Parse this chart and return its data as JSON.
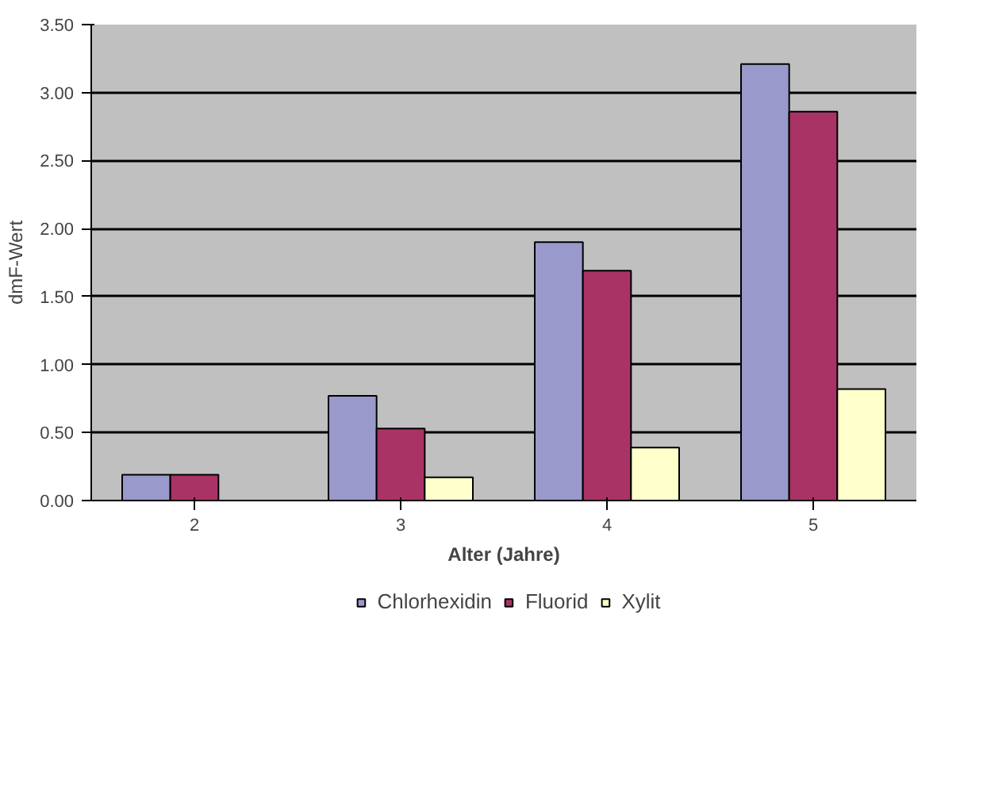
{
  "chart_data": {
    "type": "bar",
    "xlabel": "Alter (Jahre)",
    "ylabel": "dmF-Wert",
    "categories": [
      "2",
      "3",
      "4",
      "5"
    ],
    "series": [
      {
        "name": "Chlorhexidin",
        "color": "#9999cc",
        "values": [
          0.19,
          0.77,
          1.9,
          3.21
        ]
      },
      {
        "name": "Fluorid",
        "color": "#aa3366",
        "values": [
          0.19,
          0.53,
          1.69,
          2.86
        ]
      },
      {
        "name": "Xylit",
        "color": "#ffffcc",
        "values": [
          0.0,
          0.17,
          0.39,
          0.82
        ]
      }
    ],
    "ylim": [
      0,
      3.5
    ],
    "yticks": [
      {
        "value": 0,
        "label": "0.00"
      },
      {
        "value": 0.5,
        "label": "0.50"
      },
      {
        "value": 1,
        "label": "1.00"
      },
      {
        "value": 1.5,
        "label": "1.50"
      },
      {
        "value": 2,
        "label": "2.00"
      },
      {
        "value": 2.5,
        "label": "2.50"
      },
      {
        "value": 3,
        "label": "3.00"
      },
      {
        "value": 3.5,
        "label": "3.50"
      }
    ],
    "grid": "y",
    "legend": "bottom"
  }
}
